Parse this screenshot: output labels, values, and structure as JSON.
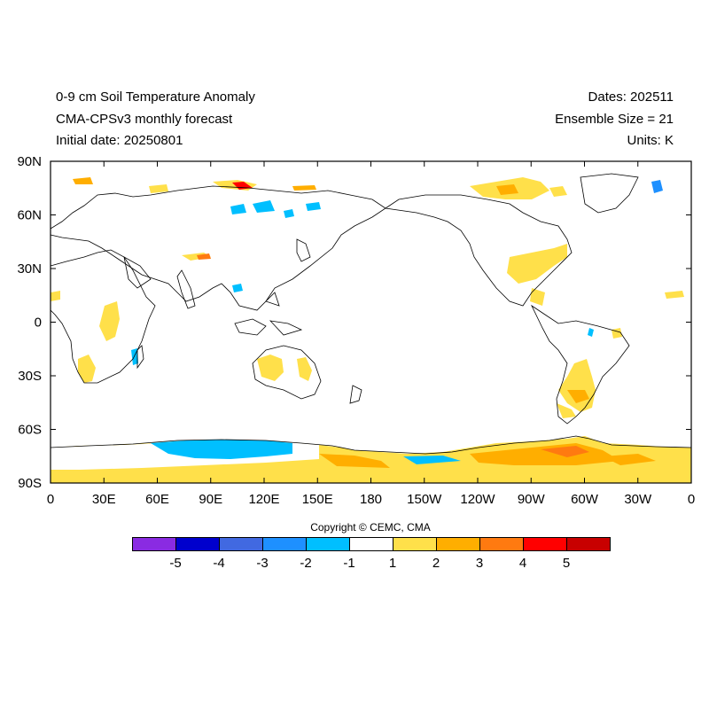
{
  "header": {
    "title": "0-9 cm Soil Temperature Anomaly",
    "model": "CMA-CPSv3 monthly forecast",
    "initial_date": "Initial date: 20250801",
    "dates": "Dates: 202511",
    "ensemble": "Ensemble Size = 21",
    "units": "Units: K"
  },
  "axes": {
    "lat_ticks": [
      "90N",
      "60N",
      "30N",
      "0",
      "30S",
      "60S",
      "90S"
    ],
    "lon_ticks": [
      "0",
      "30E",
      "60E",
      "90E",
      "120E",
      "150E",
      "180",
      "150W",
      "120W",
      "90W",
      "60W",
      "30W",
      "0"
    ]
  },
  "copyright": "Copyright © CEMC, CMA",
  "colorbar": {
    "colors": [
      "#8a2be2",
      "#0000cd",
      "#4169e1",
      "#1e90ff",
      "#00bfff",
      "#ffffff",
      "#ffe04a",
      "#ffae00",
      "#ff7a10",
      "#ff0000",
      "#c80000"
    ],
    "labels": [
      "-5",
      "-4",
      "-3",
      "-2",
      "-1",
      "1",
      "2",
      "3",
      "4",
      "5"
    ]
  },
  "map": {
    "projection": "cylindrical equidistant, centered 180",
    "colors": {
      "warm1": "#ffe04a",
      "warm2": "#ffae00",
      "warm3": "#ff7a10",
      "warm4": "#ff0000",
      "cool1": "#00bfff",
      "cool2": "#1e90ff"
    }
  }
}
